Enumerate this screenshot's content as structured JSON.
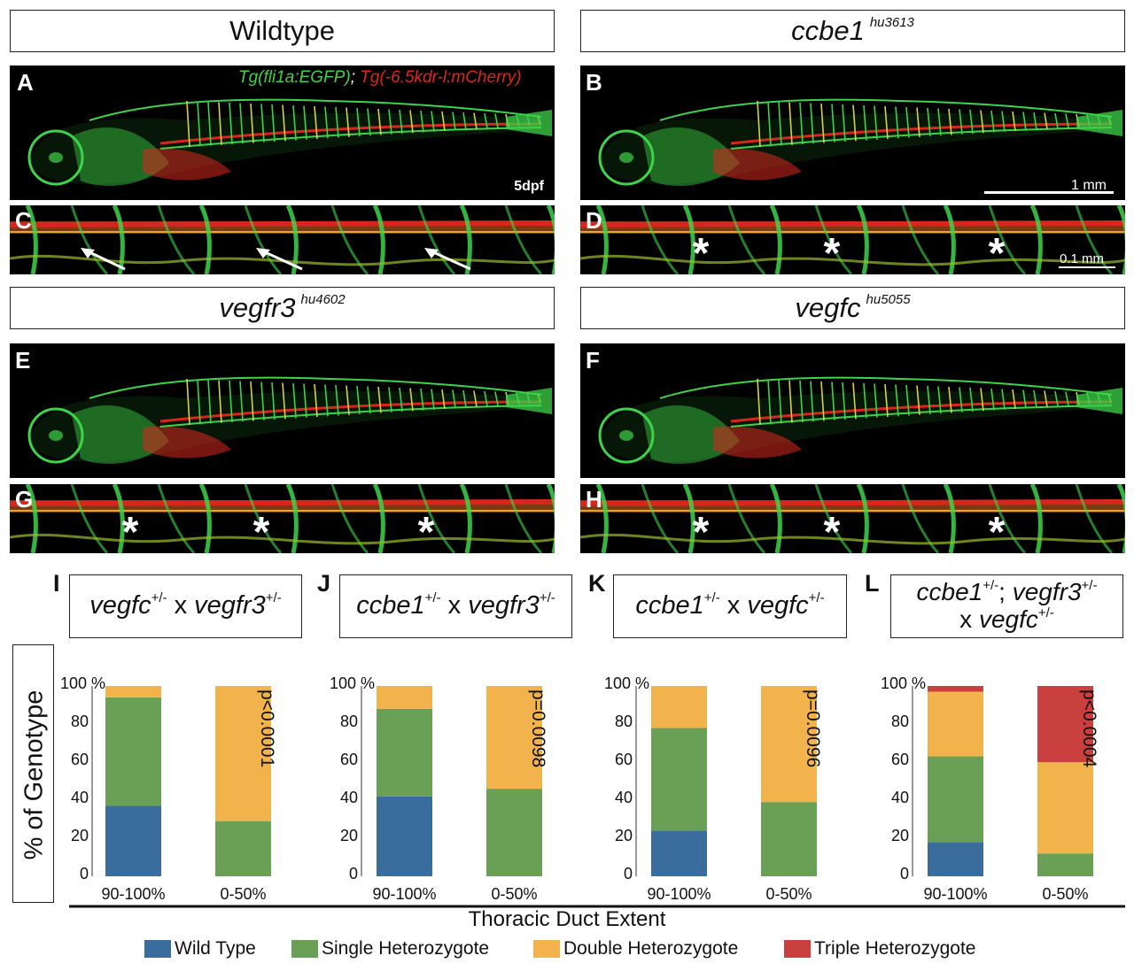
{
  "headers": {
    "wildtype": "Wildtype",
    "ccbe1": {
      "gene": "ccbe1",
      "allele": "hu3613"
    },
    "vegfr3": {
      "gene": "vegfr3",
      "allele": "hu4602"
    },
    "vegfc": {
      "gene": "vegfc",
      "allele": "hu5055"
    }
  },
  "panel_labels": {
    "A": "A",
    "B": "B",
    "C": "C",
    "D": "D",
    "E": "E",
    "F": "F",
    "G": "G",
    "H": "H",
    "I": "I",
    "J": "J",
    "K": "K",
    "L": "L"
  },
  "transgenes": {
    "green": "Tg(fli1a:EGFP)",
    "sep": ";",
    "red": "Tg(-6.5kdr-l:mCherry)"
  },
  "stage": "5dpf",
  "scale_bars": {
    "large": "1 mm",
    "small": "0.1 mm"
  },
  "colors": {
    "wild_type": "#3a6d9e",
    "single": "#6aa056",
    "double": "#f2b24c",
    "triple": "#c9403e",
    "vessel_green": "#3ed34a",
    "vessel_red": "#d8261e"
  },
  "chart_titles": {
    "I": {
      "g1": "vegfc",
      "s1": "+/-",
      "x": " x ",
      "g2": "vegfr3",
      "s2": "+/-"
    },
    "J": {
      "g1": "ccbe1",
      "s1": "+/-",
      "x": " x ",
      "g2": "vegfr3",
      "s2": "+/-"
    },
    "K": {
      "g1": "ccbe1",
      "s1": "+/-",
      "x": " x ",
      "g2": "vegfc",
      "s2": "+/-"
    },
    "L": {
      "g1": "ccbe1",
      "s1": "+/-",
      "sep": "; ",
      "g2": "vegfr3",
      "s2": "+/-",
      "x": "x ",
      "g3": "vegfc",
      "s3": "+/-"
    }
  },
  "ylabel": "% of Genotype",
  "xlabel": "Thoracic Duct Extent",
  "chart_data": [
    {
      "type": "bar",
      "panel": "I",
      "categories": [
        "90-100%",
        "0-50%"
      ],
      "ylim": [
        0,
        100
      ],
      "yticks": [
        "0",
        "20",
        "40",
        "60",
        "80",
        "100 %"
      ],
      "annotation": "p<0.0001",
      "series": [
        {
          "name": "Wild Type",
          "values": [
            37,
            0
          ]
        },
        {
          "name": "Single Heterozygote",
          "values": [
            57,
            29
          ]
        },
        {
          "name": "Double Heterozygote",
          "values": [
            6,
            71
          ]
        }
      ]
    },
    {
      "type": "bar",
      "panel": "J",
      "categories": [
        "90-100%",
        "0-50%"
      ],
      "ylim": [
        0,
        100
      ],
      "yticks": [
        "0",
        "20",
        "40",
        "60",
        "80",
        "100 %"
      ],
      "annotation": "p=0.0098",
      "series": [
        {
          "name": "Wild Type",
          "values": [
            42,
            0
          ]
        },
        {
          "name": "Single Heterozygote",
          "values": [
            46,
            46
          ]
        },
        {
          "name": "Double Heterozygote",
          "values": [
            12,
            54
          ]
        }
      ]
    },
    {
      "type": "bar",
      "panel": "K",
      "categories": [
        "90-100%",
        "0-50%"
      ],
      "ylim": [
        0,
        100
      ],
      "yticks": [
        "0",
        "20",
        "40",
        "60",
        "80",
        "100 %"
      ],
      "annotation": "p=0.0096",
      "series": [
        {
          "name": "Wild Type",
          "values": [
            24,
            0
          ]
        },
        {
          "name": "Single Heterozygote",
          "values": [
            54,
            39
          ]
        },
        {
          "name": "Double Heterozygote",
          "values": [
            22,
            61
          ]
        }
      ]
    },
    {
      "type": "bar",
      "panel": "L",
      "categories": [
        "90-100%",
        "0-50%"
      ],
      "ylim": [
        0,
        100
      ],
      "yticks": [
        "0",
        "20",
        "40",
        "60",
        "80",
        "100 %"
      ],
      "annotation": "p<0.0004",
      "series": [
        {
          "name": "Wild Type",
          "values": [
            18,
            0
          ]
        },
        {
          "name": "Single Heterozygote",
          "values": [
            45,
            12
          ]
        },
        {
          "name": "Double Heterozygote",
          "values": [
            34,
            48
          ]
        },
        {
          "name": "Triple Heterozygote",
          "values": [
            3,
            40
          ]
        }
      ]
    }
  ],
  "legend": [
    "Wild Type",
    "Single Heterozygote",
    "Double Heterozygote",
    "Triple Heterozygote"
  ]
}
